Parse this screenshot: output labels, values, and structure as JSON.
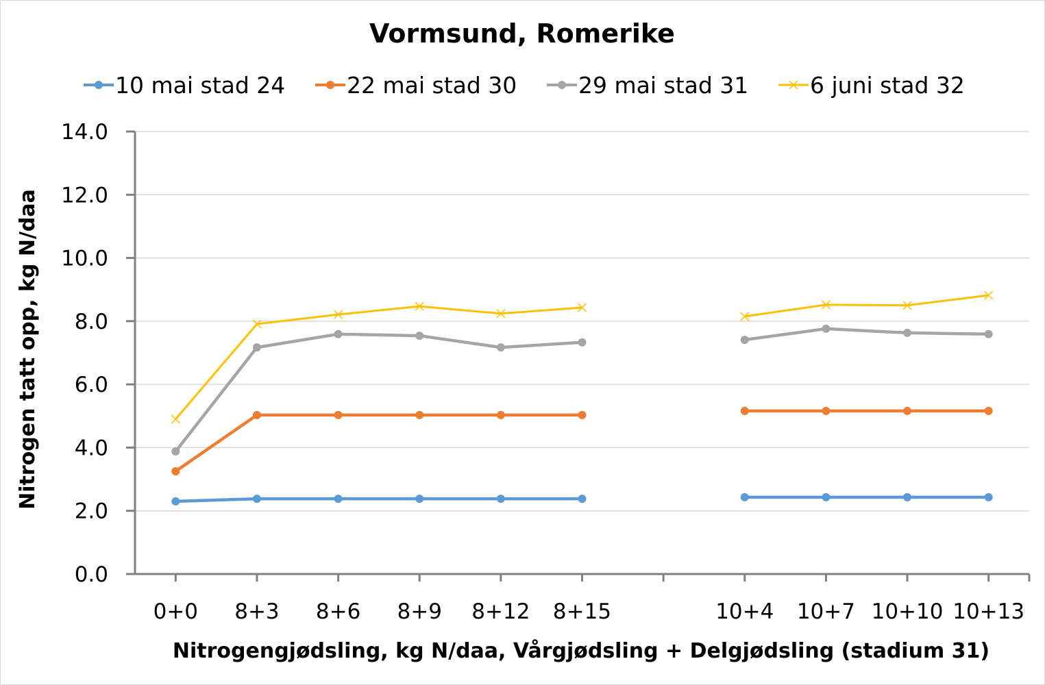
{
  "chart_data": {
    "type": "line",
    "title": "Vormsund, Romerike",
    "xlabel": "Nitrogengjødsling, kg N/daa, Vårgjødsling + Delgjødsling (stadium 31)",
    "ylabel": "Nitrogen tatt opp, kg N/daa",
    "ylim": [
      0,
      14
    ],
    "yticks": [
      "0.0",
      "2.0",
      "4.0",
      "6.0",
      "8.0",
      "10.0",
      "12.0",
      "14.0"
    ],
    "grid": true,
    "legend_position": "top",
    "categories": [
      "0+0",
      "8+3",
      "8+6",
      "8+9",
      "8+12",
      "8+15",
      "",
      "10+4",
      "10+7",
      "10+10",
      "10+13"
    ],
    "series": [
      {
        "name": "10 mai stad 24",
        "color": "#5b9bd5",
        "marker": "circle",
        "values": [
          2.3,
          2.38,
          2.38,
          2.38,
          2.38,
          2.38,
          null,
          2.43,
          2.43,
          2.43,
          2.43
        ]
      },
      {
        "name": "22 mai stad 30",
        "color": "#ed7d31",
        "marker": "circle",
        "values": [
          3.25,
          5.03,
          5.03,
          5.03,
          5.03,
          5.03,
          null,
          5.16,
          5.16,
          5.16,
          5.16
        ]
      },
      {
        "name": "29 mai stad 31",
        "color": "#a5a5a5",
        "marker": "circle",
        "values": [
          3.88,
          7.17,
          7.59,
          7.54,
          7.17,
          7.33,
          null,
          7.41,
          7.76,
          7.63,
          7.59
        ]
      },
      {
        "name": "6 juni stad 32",
        "color": "#ffc000",
        "marker": "x",
        "values": [
          4.9,
          7.91,
          8.21,
          8.47,
          8.24,
          8.43,
          null,
          8.15,
          8.52,
          8.5,
          8.82
        ]
      }
    ]
  }
}
